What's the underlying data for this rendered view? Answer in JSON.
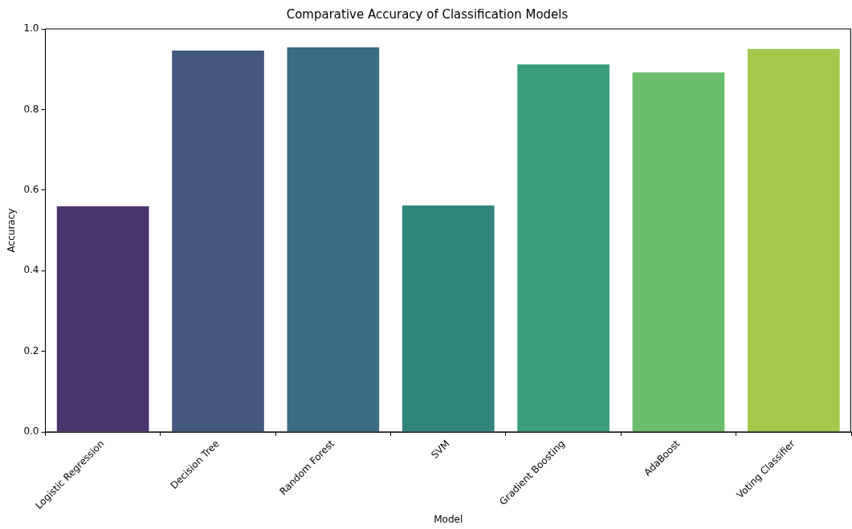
{
  "chart_data": {
    "type": "bar",
    "title": "Comparative Accuracy of Classification Models",
    "xlabel": "Model",
    "ylabel": "Accuracy",
    "categories": [
      "Logistic Regression",
      "Decision Tree",
      "Random Forest",
      "SVM",
      "Gradient Boosting",
      "AdaBoost",
      "Voting Classifier"
    ],
    "values": [
      0.56,
      0.946,
      0.954,
      0.562,
      0.912,
      0.892,
      0.95
    ],
    "colors": [
      "#4a3570",
      "#44587f",
      "#3a6e82",
      "#2f847e",
      "#3a9e7c",
      "#6abd6b",
      "#a3c84a"
    ],
    "ylim": [
      0,
      1
    ],
    "yticks": [
      {
        "value": 0,
        "label": "0.0"
      },
      0.2,
      0.4,
      0.6,
      0.8,
      {
        "value": 1,
        "label": "1.0"
      }
    ],
    "grid": false,
    "legend": false
  }
}
